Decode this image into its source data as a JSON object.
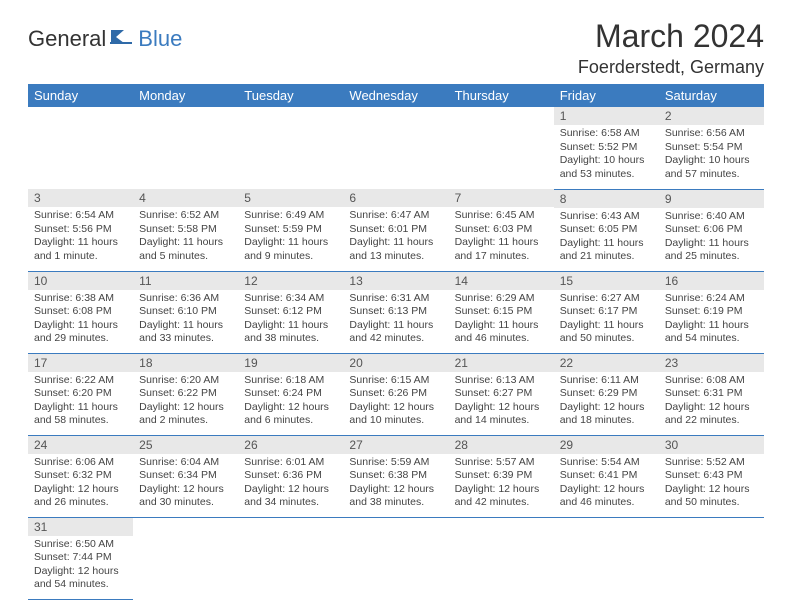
{
  "logo": {
    "general": "General",
    "blue": "Blue"
  },
  "title": "March 2024",
  "location": "Foerderstedt, Germany",
  "colors": {
    "header_bg": "#3b7bbf",
    "daynum_bg": "#e8e8e8",
    "border": "#3b7bbf"
  },
  "weekdays": [
    "Sunday",
    "Monday",
    "Tuesday",
    "Wednesday",
    "Thursday",
    "Friday",
    "Saturday"
  ],
  "weeks": [
    [
      {
        "n": "",
        "sr": "",
        "ss": "",
        "dl": ""
      },
      {
        "n": "",
        "sr": "",
        "ss": "",
        "dl": ""
      },
      {
        "n": "",
        "sr": "",
        "ss": "",
        "dl": ""
      },
      {
        "n": "",
        "sr": "",
        "ss": "",
        "dl": ""
      },
      {
        "n": "",
        "sr": "",
        "ss": "",
        "dl": ""
      },
      {
        "n": "1",
        "sr": "Sunrise: 6:58 AM",
        "ss": "Sunset: 5:52 PM",
        "dl": "Daylight: 10 hours and 53 minutes."
      },
      {
        "n": "2",
        "sr": "Sunrise: 6:56 AM",
        "ss": "Sunset: 5:54 PM",
        "dl": "Daylight: 10 hours and 57 minutes."
      }
    ],
    [
      {
        "n": "3",
        "sr": "Sunrise: 6:54 AM",
        "ss": "Sunset: 5:56 PM",
        "dl": "Daylight: 11 hours and 1 minute."
      },
      {
        "n": "4",
        "sr": "Sunrise: 6:52 AM",
        "ss": "Sunset: 5:58 PM",
        "dl": "Daylight: 11 hours and 5 minutes."
      },
      {
        "n": "5",
        "sr": "Sunrise: 6:49 AM",
        "ss": "Sunset: 5:59 PM",
        "dl": "Daylight: 11 hours and 9 minutes."
      },
      {
        "n": "6",
        "sr": "Sunrise: 6:47 AM",
        "ss": "Sunset: 6:01 PM",
        "dl": "Daylight: 11 hours and 13 minutes."
      },
      {
        "n": "7",
        "sr": "Sunrise: 6:45 AM",
        "ss": "Sunset: 6:03 PM",
        "dl": "Daylight: 11 hours and 17 minutes."
      },
      {
        "n": "8",
        "sr": "Sunrise: 6:43 AM",
        "ss": "Sunset: 6:05 PM",
        "dl": "Daylight: 11 hours and 21 minutes."
      },
      {
        "n": "9",
        "sr": "Sunrise: 6:40 AM",
        "ss": "Sunset: 6:06 PM",
        "dl": "Daylight: 11 hours and 25 minutes."
      }
    ],
    [
      {
        "n": "10",
        "sr": "Sunrise: 6:38 AM",
        "ss": "Sunset: 6:08 PM",
        "dl": "Daylight: 11 hours and 29 minutes."
      },
      {
        "n": "11",
        "sr": "Sunrise: 6:36 AM",
        "ss": "Sunset: 6:10 PM",
        "dl": "Daylight: 11 hours and 33 minutes."
      },
      {
        "n": "12",
        "sr": "Sunrise: 6:34 AM",
        "ss": "Sunset: 6:12 PM",
        "dl": "Daylight: 11 hours and 38 minutes."
      },
      {
        "n": "13",
        "sr": "Sunrise: 6:31 AM",
        "ss": "Sunset: 6:13 PM",
        "dl": "Daylight: 11 hours and 42 minutes."
      },
      {
        "n": "14",
        "sr": "Sunrise: 6:29 AM",
        "ss": "Sunset: 6:15 PM",
        "dl": "Daylight: 11 hours and 46 minutes."
      },
      {
        "n": "15",
        "sr": "Sunrise: 6:27 AM",
        "ss": "Sunset: 6:17 PM",
        "dl": "Daylight: 11 hours and 50 minutes."
      },
      {
        "n": "16",
        "sr": "Sunrise: 6:24 AM",
        "ss": "Sunset: 6:19 PM",
        "dl": "Daylight: 11 hours and 54 minutes."
      }
    ],
    [
      {
        "n": "17",
        "sr": "Sunrise: 6:22 AM",
        "ss": "Sunset: 6:20 PM",
        "dl": "Daylight: 11 hours and 58 minutes."
      },
      {
        "n": "18",
        "sr": "Sunrise: 6:20 AM",
        "ss": "Sunset: 6:22 PM",
        "dl": "Daylight: 12 hours and 2 minutes."
      },
      {
        "n": "19",
        "sr": "Sunrise: 6:18 AM",
        "ss": "Sunset: 6:24 PM",
        "dl": "Daylight: 12 hours and 6 minutes."
      },
      {
        "n": "20",
        "sr": "Sunrise: 6:15 AM",
        "ss": "Sunset: 6:26 PM",
        "dl": "Daylight: 12 hours and 10 minutes."
      },
      {
        "n": "21",
        "sr": "Sunrise: 6:13 AM",
        "ss": "Sunset: 6:27 PM",
        "dl": "Daylight: 12 hours and 14 minutes."
      },
      {
        "n": "22",
        "sr": "Sunrise: 6:11 AM",
        "ss": "Sunset: 6:29 PM",
        "dl": "Daylight: 12 hours and 18 minutes."
      },
      {
        "n": "23",
        "sr": "Sunrise: 6:08 AM",
        "ss": "Sunset: 6:31 PM",
        "dl": "Daylight: 12 hours and 22 minutes."
      }
    ],
    [
      {
        "n": "24",
        "sr": "Sunrise: 6:06 AM",
        "ss": "Sunset: 6:32 PM",
        "dl": "Daylight: 12 hours and 26 minutes."
      },
      {
        "n": "25",
        "sr": "Sunrise: 6:04 AM",
        "ss": "Sunset: 6:34 PM",
        "dl": "Daylight: 12 hours and 30 minutes."
      },
      {
        "n": "26",
        "sr": "Sunrise: 6:01 AM",
        "ss": "Sunset: 6:36 PM",
        "dl": "Daylight: 12 hours and 34 minutes."
      },
      {
        "n": "27",
        "sr": "Sunrise: 5:59 AM",
        "ss": "Sunset: 6:38 PM",
        "dl": "Daylight: 12 hours and 38 minutes."
      },
      {
        "n": "28",
        "sr": "Sunrise: 5:57 AM",
        "ss": "Sunset: 6:39 PM",
        "dl": "Daylight: 12 hours and 42 minutes."
      },
      {
        "n": "29",
        "sr": "Sunrise: 5:54 AM",
        "ss": "Sunset: 6:41 PM",
        "dl": "Daylight: 12 hours and 46 minutes."
      },
      {
        "n": "30",
        "sr": "Sunrise: 5:52 AM",
        "ss": "Sunset: 6:43 PM",
        "dl": "Daylight: 12 hours and 50 minutes."
      }
    ],
    [
      {
        "n": "31",
        "sr": "Sunrise: 6:50 AM",
        "ss": "Sunset: 7:44 PM",
        "dl": "Daylight: 12 hours and 54 minutes."
      },
      {
        "n": "",
        "sr": "",
        "ss": "",
        "dl": ""
      },
      {
        "n": "",
        "sr": "",
        "ss": "",
        "dl": ""
      },
      {
        "n": "",
        "sr": "",
        "ss": "",
        "dl": ""
      },
      {
        "n": "",
        "sr": "",
        "ss": "",
        "dl": ""
      },
      {
        "n": "",
        "sr": "",
        "ss": "",
        "dl": ""
      },
      {
        "n": "",
        "sr": "",
        "ss": "",
        "dl": ""
      }
    ]
  ]
}
